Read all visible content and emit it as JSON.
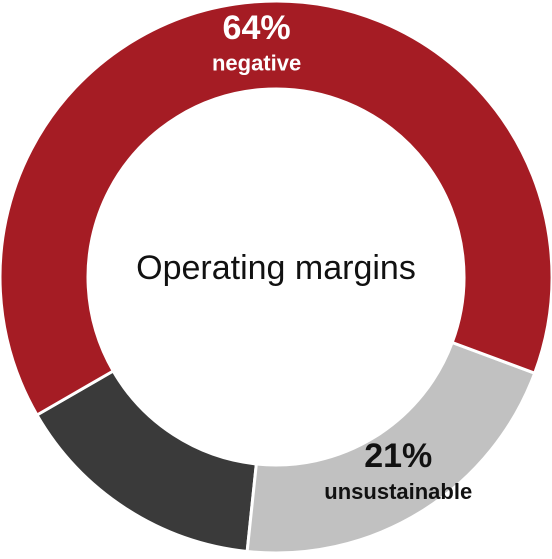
{
  "chart_data": {
    "type": "donut",
    "title": "Operating margins",
    "categories": [
      "negative",
      "unsustainable",
      null
    ],
    "values": [
      64,
      21,
      15
    ],
    "value_labels": [
      "64%",
      "21%",
      null
    ],
    "colors": [
      "#a51c24",
      "#c1c1c1",
      "#3a3a3a"
    ]
  }
}
